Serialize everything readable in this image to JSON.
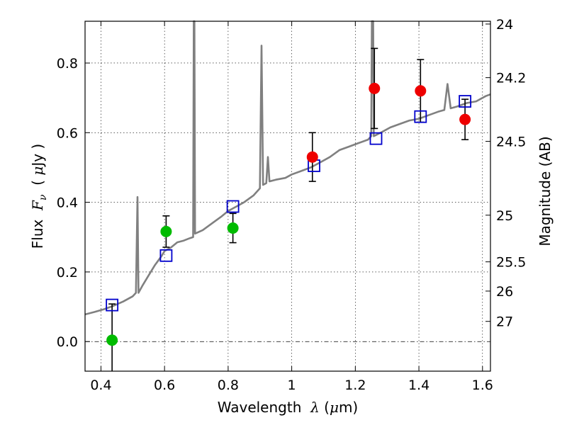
{
  "chart_data": {
    "type": "scatter",
    "xlabel": {
      "prefix": "Wavelength  ",
      "symbol": "λ",
      "unit_open": " (",
      "unit_mu": "μ",
      "unit_close": "m)"
    },
    "ylabel": {
      "prefix": "Flux  ",
      "symbol": "F",
      "sub": "ν",
      "unit_open": "  ( ",
      "unit_mu": "μ",
      "unit_close": "Jy )"
    },
    "y2label": "Magnitude (AB)",
    "xlim": [
      0.35,
      1.625
    ],
    "ylim": [
      -0.085,
      0.92
    ],
    "grid": true,
    "xticks": [
      {
        "v": 0.4,
        "label": "0.4"
      },
      {
        "v": 0.6,
        "label": "0.6"
      },
      {
        "v": 0.8,
        "label": "0.8"
      },
      {
        "v": 1.0,
        "label": "1"
      },
      {
        "v": 1.2,
        "label": "1.2"
      },
      {
        "v": 1.4,
        "label": "1.4"
      },
      {
        "v": 1.6,
        "label": "1.6"
      }
    ],
    "yticks": [
      {
        "v": 0.0,
        "label": "0.0"
      },
      {
        "v": 0.2,
        "label": "0.2"
      },
      {
        "v": 0.4,
        "label": "0.4"
      },
      {
        "v": 0.6,
        "label": "0.6"
      },
      {
        "v": 0.8,
        "label": "0.8"
      }
    ],
    "y2ticks": [
      {
        "label": "24",
        "flux": 0.912
      },
      {
        "label": "24.2",
        "flux": 0.758
      },
      {
        "label": "24.5",
        "flux": 0.575
      },
      {
        "label": "25",
        "flux": 0.363
      },
      {
        "label": "25.5",
        "flux": 0.229
      },
      {
        "label": "26",
        "flux": 0.145
      },
      {
        "label": "27",
        "flux": 0.058
      }
    ],
    "colors": {
      "spectrum": "#808080",
      "model_box": "#0000cc",
      "obs_green": "#00bb00",
      "obs_red": "#ee0000",
      "errorbar": "#000000",
      "zero_line": "#000000"
    },
    "series": [
      {
        "kind": "line",
        "points": [
          [
            0.35,
            0.078
          ],
          [
            0.38,
            0.085
          ],
          [
            0.41,
            0.093
          ],
          [
            0.44,
            0.103
          ],
          [
            0.47,
            0.115
          ],
          [
            0.5,
            0.13
          ],
          [
            0.51,
            0.14
          ],
          [
            0.515,
            0.415
          ],
          [
            0.518,
            0.14
          ],
          [
            0.53,
            0.16
          ],
          [
            0.55,
            0.19
          ],
          [
            0.57,
            0.22
          ],
          [
            0.59,
            0.245
          ],
          [
            0.6,
            0.26
          ],
          [
            0.62,
            0.27
          ],
          [
            0.64,
            0.285
          ],
          [
            0.66,
            0.29
          ],
          [
            0.68,
            0.297
          ],
          [
            0.69,
            0.3
          ],
          [
            0.692,
            0.92
          ],
          [
            0.694,
            0.92
          ],
          [
            0.696,
            0.31
          ],
          [
            0.72,
            0.32
          ],
          [
            0.75,
            0.34
          ],
          [
            0.78,
            0.36
          ],
          [
            0.8,
            0.375
          ],
          [
            0.82,
            0.385
          ],
          [
            0.85,
            0.4
          ],
          [
            0.88,
            0.42
          ],
          [
            0.9,
            0.44
          ],
          [
            0.905,
            0.85
          ],
          [
            0.91,
            0.45
          ],
          [
            0.92,
            0.455
          ],
          [
            0.925,
            0.53
          ],
          [
            0.93,
            0.46
          ],
          [
            0.95,
            0.465
          ],
          [
            0.98,
            0.47
          ],
          [
            1.0,
            0.48
          ],
          [
            1.03,
            0.49
          ],
          [
            1.06,
            0.5
          ],
          [
            1.09,
            0.515
          ],
          [
            1.12,
            0.53
          ],
          [
            1.15,
            0.55
          ],
          [
            1.18,
            0.56
          ],
          [
            1.21,
            0.57
          ],
          [
            1.24,
            0.58
          ],
          [
            1.25,
            0.59
          ],
          [
            1.252,
            0.92
          ],
          [
            1.256,
            0.92
          ],
          [
            1.258,
            0.59
          ],
          [
            1.28,
            0.6
          ],
          [
            1.31,
            0.615
          ],
          [
            1.34,
            0.625
          ],
          [
            1.37,
            0.635
          ],
          [
            1.4,
            0.64
          ],
          [
            1.43,
            0.65
          ],
          [
            1.46,
            0.66
          ],
          [
            1.48,
            0.665
          ],
          [
            1.49,
            0.74
          ],
          [
            1.5,
            0.67
          ],
          [
            1.52,
            0.675
          ],
          [
            1.55,
            0.685
          ],
          [
            1.58,
            0.69
          ],
          [
            1.61,
            0.705
          ],
          [
            1.625,
            0.71
          ]
        ]
      },
      {
        "kind": "square",
        "points": [
          [
            0.435,
            0.105
          ],
          [
            0.605,
            0.247
          ],
          [
            0.815,
            0.388
          ],
          [
            1.07,
            0.505
          ],
          [
            1.265,
            0.583
          ],
          [
            1.405,
            0.646
          ],
          [
            1.545,
            0.69
          ]
        ]
      },
      {
        "kind": "circle",
        "color_key": "obs_green",
        "points": [
          {
            "x": 0.435,
            "y": 0.004,
            "err": null
          },
          {
            "x": 0.605,
            "y": 0.316,
            "err": 0.045
          },
          {
            "x": 0.815,
            "y": 0.326,
            "err": 0.042
          }
        ]
      },
      {
        "kind": "circle",
        "color_key": "obs_red",
        "points": [
          {
            "x": 1.065,
            "y": 0.53,
            "err": 0.07
          },
          {
            "x": 1.26,
            "y": 0.727,
            "err": 0.115
          },
          {
            "x": 1.405,
            "y": 0.72,
            "err": 0.09
          },
          {
            "x": 1.545,
            "y": 0.638,
            "err": 0.058
          }
        ]
      }
    ],
    "green_lower_err_to_axis": {
      "x": 0.435,
      "top": 0.108
    }
  }
}
